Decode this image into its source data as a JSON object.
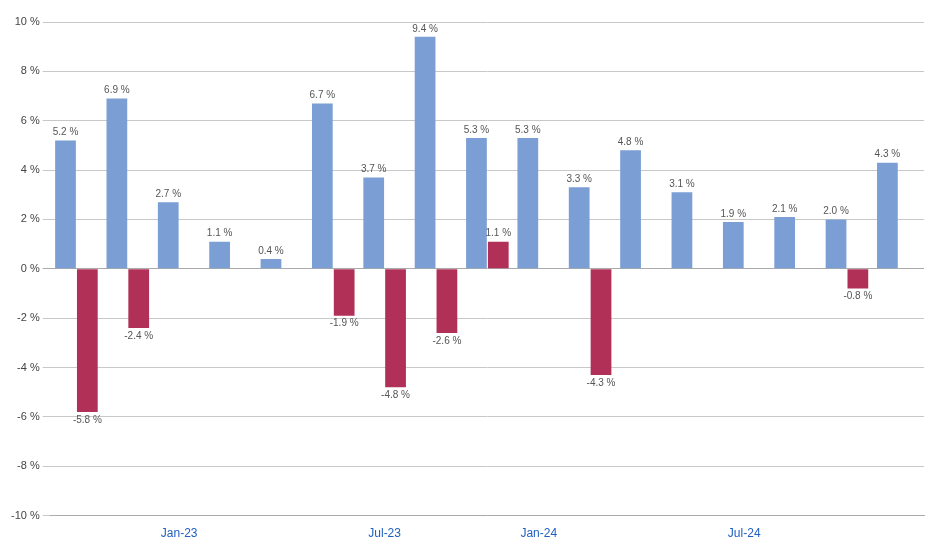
{
  "chart_data": {
    "type": "bar",
    "categories": [
      null,
      null,
      "Jan-23",
      null,
      null,
      null,
      "Jul-23",
      null,
      null,
      "Jan-24",
      null,
      null,
      null,
      "Jul-24",
      null,
      null,
      null
    ],
    "series": [
      {
        "color": "#7B9FD4",
        "values": [
          5.2,
          6.9,
          2.7,
          1.1,
          0.4,
          6.7,
          3.7,
          9.4,
          5.3,
          5.3,
          3.3,
          4.8,
          3.1,
          1.9,
          2.1,
          2.0,
          4.3
        ],
        "value_labels": [
          "5.2 %",
          "6.9 %",
          "2.7 %",
          "1.1 %",
          "0.4 %",
          "6.7 %",
          "3.7 %",
          "9.4 %",
          "5.3 %",
          "5.3 %",
          "3.3 %",
          "4.8 %",
          "3.1 %",
          "1.9 %",
          "2.1 %",
          "2.0 %",
          "4.3 %"
        ]
      },
      {
        "color": "#B03058",
        "values": [
          -5.8,
          -2.4,
          null,
          null,
          null,
          -1.9,
          -4.8,
          -2.6,
          1.1,
          null,
          -4.3,
          null,
          null,
          null,
          null,
          -0.8,
          null
        ],
        "value_labels": [
          "-5.8 %",
          "-2.4 %",
          null,
          null,
          null,
          "-1.9 %",
          "-4.8 %",
          "-2.6 %",
          "1.1 %",
          null,
          "-4.3 %",
          null,
          null,
          null,
          null,
          "-0.8 %",
          null
        ]
      }
    ],
    "ylim": [
      -10,
      10
    ],
    "yticks": [
      {
        "value": -10,
        "label": "-10 %"
      },
      {
        "value": -8,
        "label": "-8 %"
      },
      {
        "value": -6,
        "label": "-6 %"
      },
      {
        "value": -4,
        "label": "-4 %"
      },
      {
        "value": -2,
        "label": "-2 %"
      },
      {
        "value": 0,
        "label": "0 %"
      },
      {
        "value": 2,
        "label": "2 %"
      },
      {
        "value": 4,
        "label": "4 %"
      },
      {
        "value": 6,
        "label": "6 %"
      },
      {
        "value": 8,
        "label": "8 %"
      },
      {
        "value": 10,
        "label": "10 %"
      }
    ],
    "grid": true,
    "data_labels": true
  }
}
